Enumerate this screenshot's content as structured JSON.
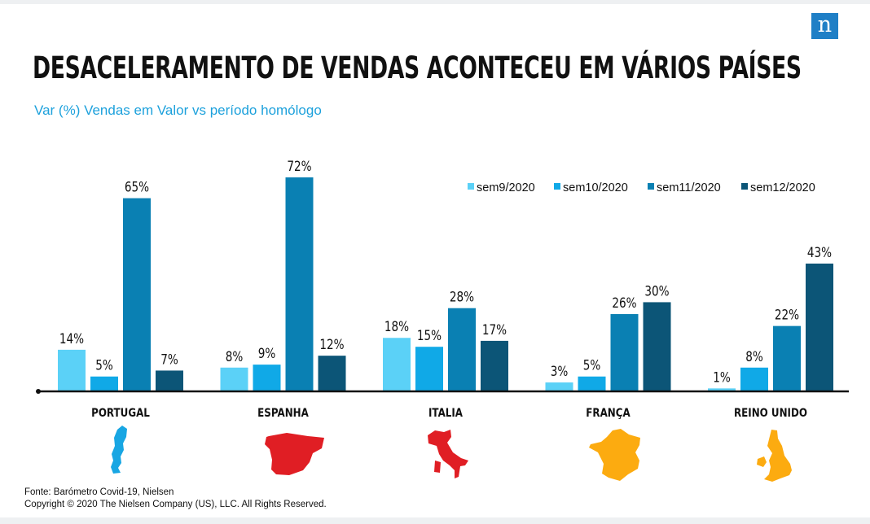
{
  "logo": {
    "letter": "n"
  },
  "header": {
    "title": "DESACELERAMENTO DE VENDAS ACONTECEU EM VÁRIOS PAÍSES",
    "subtitle": "Var (%) Vendas em Valor vs período homólogo"
  },
  "chart_data": {
    "type": "bar",
    "title": "DESACELERAMENTO DE VENDAS ACONTECEU EM VÁRIOS PAÍSES",
    "subtitle": "Var (%) Vendas em Valor vs período homólogo",
    "categories": [
      "PORTUGAL",
      "ESPANHA",
      "ITALIA",
      "FRANÇA",
      "REINO UNIDO"
    ],
    "series": [
      {
        "name": "sem9/2020",
        "color": "#5bd1f7",
        "values": [
          14,
          8,
          18,
          3,
          1
        ]
      },
      {
        "name": "sem10/2020",
        "color": "#10a9e7",
        "values": [
          5,
          9,
          15,
          5,
          8
        ]
      },
      {
        "name": "sem11/2020",
        "color": "#0a80b3",
        "values": [
          65,
          72,
          28,
          26,
          22
        ]
      },
      {
        "name": "sem12/2020",
        "color": "#0c5577",
        "values": [
          7,
          12,
          17,
          30,
          43
        ]
      }
    ],
    "value_suffix": "%",
    "ylim": [
      0,
      72
    ],
    "grid": false,
    "legend_position": "top-right"
  },
  "maps": [
    {
      "country": "PORTUGAL",
      "color": "#18a6e3"
    },
    {
      "country": "ESPANHA",
      "color": "#e01e24"
    },
    {
      "country": "ITALIA",
      "color": "#e01e24"
    },
    {
      "country": "FRANÇA",
      "color": "#fcab10"
    },
    {
      "country": "REINO UNIDO",
      "color": "#fcab10"
    }
  ],
  "footer": {
    "source": "Fonte: Barómetro Covid-19, Nielsen",
    "copyright": "Copyright © 2020 The Nielsen Company (US), LLC. All Rights Reserved."
  }
}
